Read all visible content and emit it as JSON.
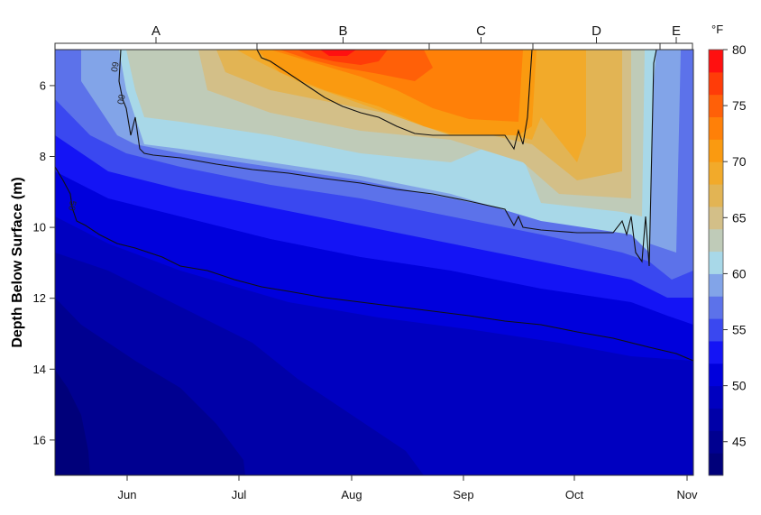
{
  "chart_data": {
    "type": "heatmap",
    "subtype": "filled-contour",
    "title": "",
    "xlabel": "",
    "ylabel": "Depth Below Surface (m)",
    "colorbar_title": "°F",
    "x_ticks": [
      "Jun",
      "Jul",
      "Aug",
      "Sep",
      "Oct",
      "Nov"
    ],
    "y_ticks": [
      6,
      8,
      10,
      12,
      14,
      16
    ],
    "ylim": [
      17,
      5
    ],
    "y_inverted": true,
    "colorbar_ticks": [
      45,
      50,
      55,
      60,
      65,
      70,
      75,
      80
    ],
    "colorbar_range": [
      42,
      80
    ],
    "level_step": 2,
    "levels": [
      {
        "from": 42,
        "to": 44,
        "color": "#00007a"
      },
      {
        "from": 44,
        "to": 46,
        "color": "#000090"
      },
      {
        "from": 46,
        "to": 48,
        "color": "#0000a8"
      },
      {
        "from": 48,
        "to": 50,
        "color": "#0000c0"
      },
      {
        "from": 50,
        "to": 52,
        "color": "#0000dc"
      },
      {
        "from": 52,
        "to": 54,
        "color": "#1414f5"
      },
      {
        "from": 54,
        "to": 56,
        "color": "#3a48f0"
      },
      {
        "from": 56,
        "to": 58,
        "color": "#5c72ea"
      },
      {
        "from": 58,
        "to": 60,
        "color": "#82a4e8"
      },
      {
        "from": 60,
        "to": 62,
        "color": "#a8d8e8"
      },
      {
        "from": 62,
        "to": 64,
        "color": "#bfcbb8"
      },
      {
        "from": 64,
        "to": 66,
        "color": "#d3bf88"
      },
      {
        "from": 66,
        "to": 68,
        "color": "#e2b454"
      },
      {
        "from": 68,
        "to": 70,
        "color": "#f2aa2a"
      },
      {
        "from": 70,
        "to": 72,
        "color": "#fa9a10"
      },
      {
        "from": 72,
        "to": 74,
        "color": "#ff8008"
      },
      {
        "from": 74,
        "to": 76,
        "color": "#ff6008"
      },
      {
        "from": 76,
        "to": 78,
        "color": "#ff3c08"
      },
      {
        "from": 78,
        "to": 80,
        "color": "#ff1010"
      }
    ],
    "contour_lines": [
      {
        "value": 50,
        "label": "50",
        "description": "descends from ~8.5 m in late May to ~13.7 m at end of Oct"
      },
      {
        "value": 60,
        "label": "60",
        "description": "thermocline boundary from ~7.9 m in June down to ~10.2 m by late Oct, vertical at turnover"
      },
      {
        "value": 70,
        "label": "70",
        "description": "encloses warmest surface water from early Jul to mid-Sep, ~5–7.5 m"
      }
    ],
    "periods": [
      {
        "label": "A",
        "start": "mid-May",
        "end": "early Jul"
      },
      {
        "label": "B",
        "start": "early Jul",
        "end": "late Aug"
      },
      {
        "label": "C",
        "start": "late Aug",
        "end": "mid-Sep"
      },
      {
        "label": "D",
        "start": "mid-Sep",
        "end": "late Oct"
      },
      {
        "label": "E",
        "start": "late Oct",
        "end": "Nov"
      }
    ],
    "approximate_temperatures": [
      {
        "period": "A",
        "surface_F": 62,
        "bottom_F": 43
      },
      {
        "period": "B",
        "surface_F": 78,
        "bottom_F": 47
      },
      {
        "period": "C",
        "surface_F": 74,
        "bottom_F": 49
      },
      {
        "period": "D",
        "surface_F": 66,
        "bottom_F": 50
      },
      {
        "period": "E",
        "surface_F": 57,
        "bottom_F": 51
      }
    ],
    "grid": false,
    "legend_position": "right (colorbar)"
  }
}
